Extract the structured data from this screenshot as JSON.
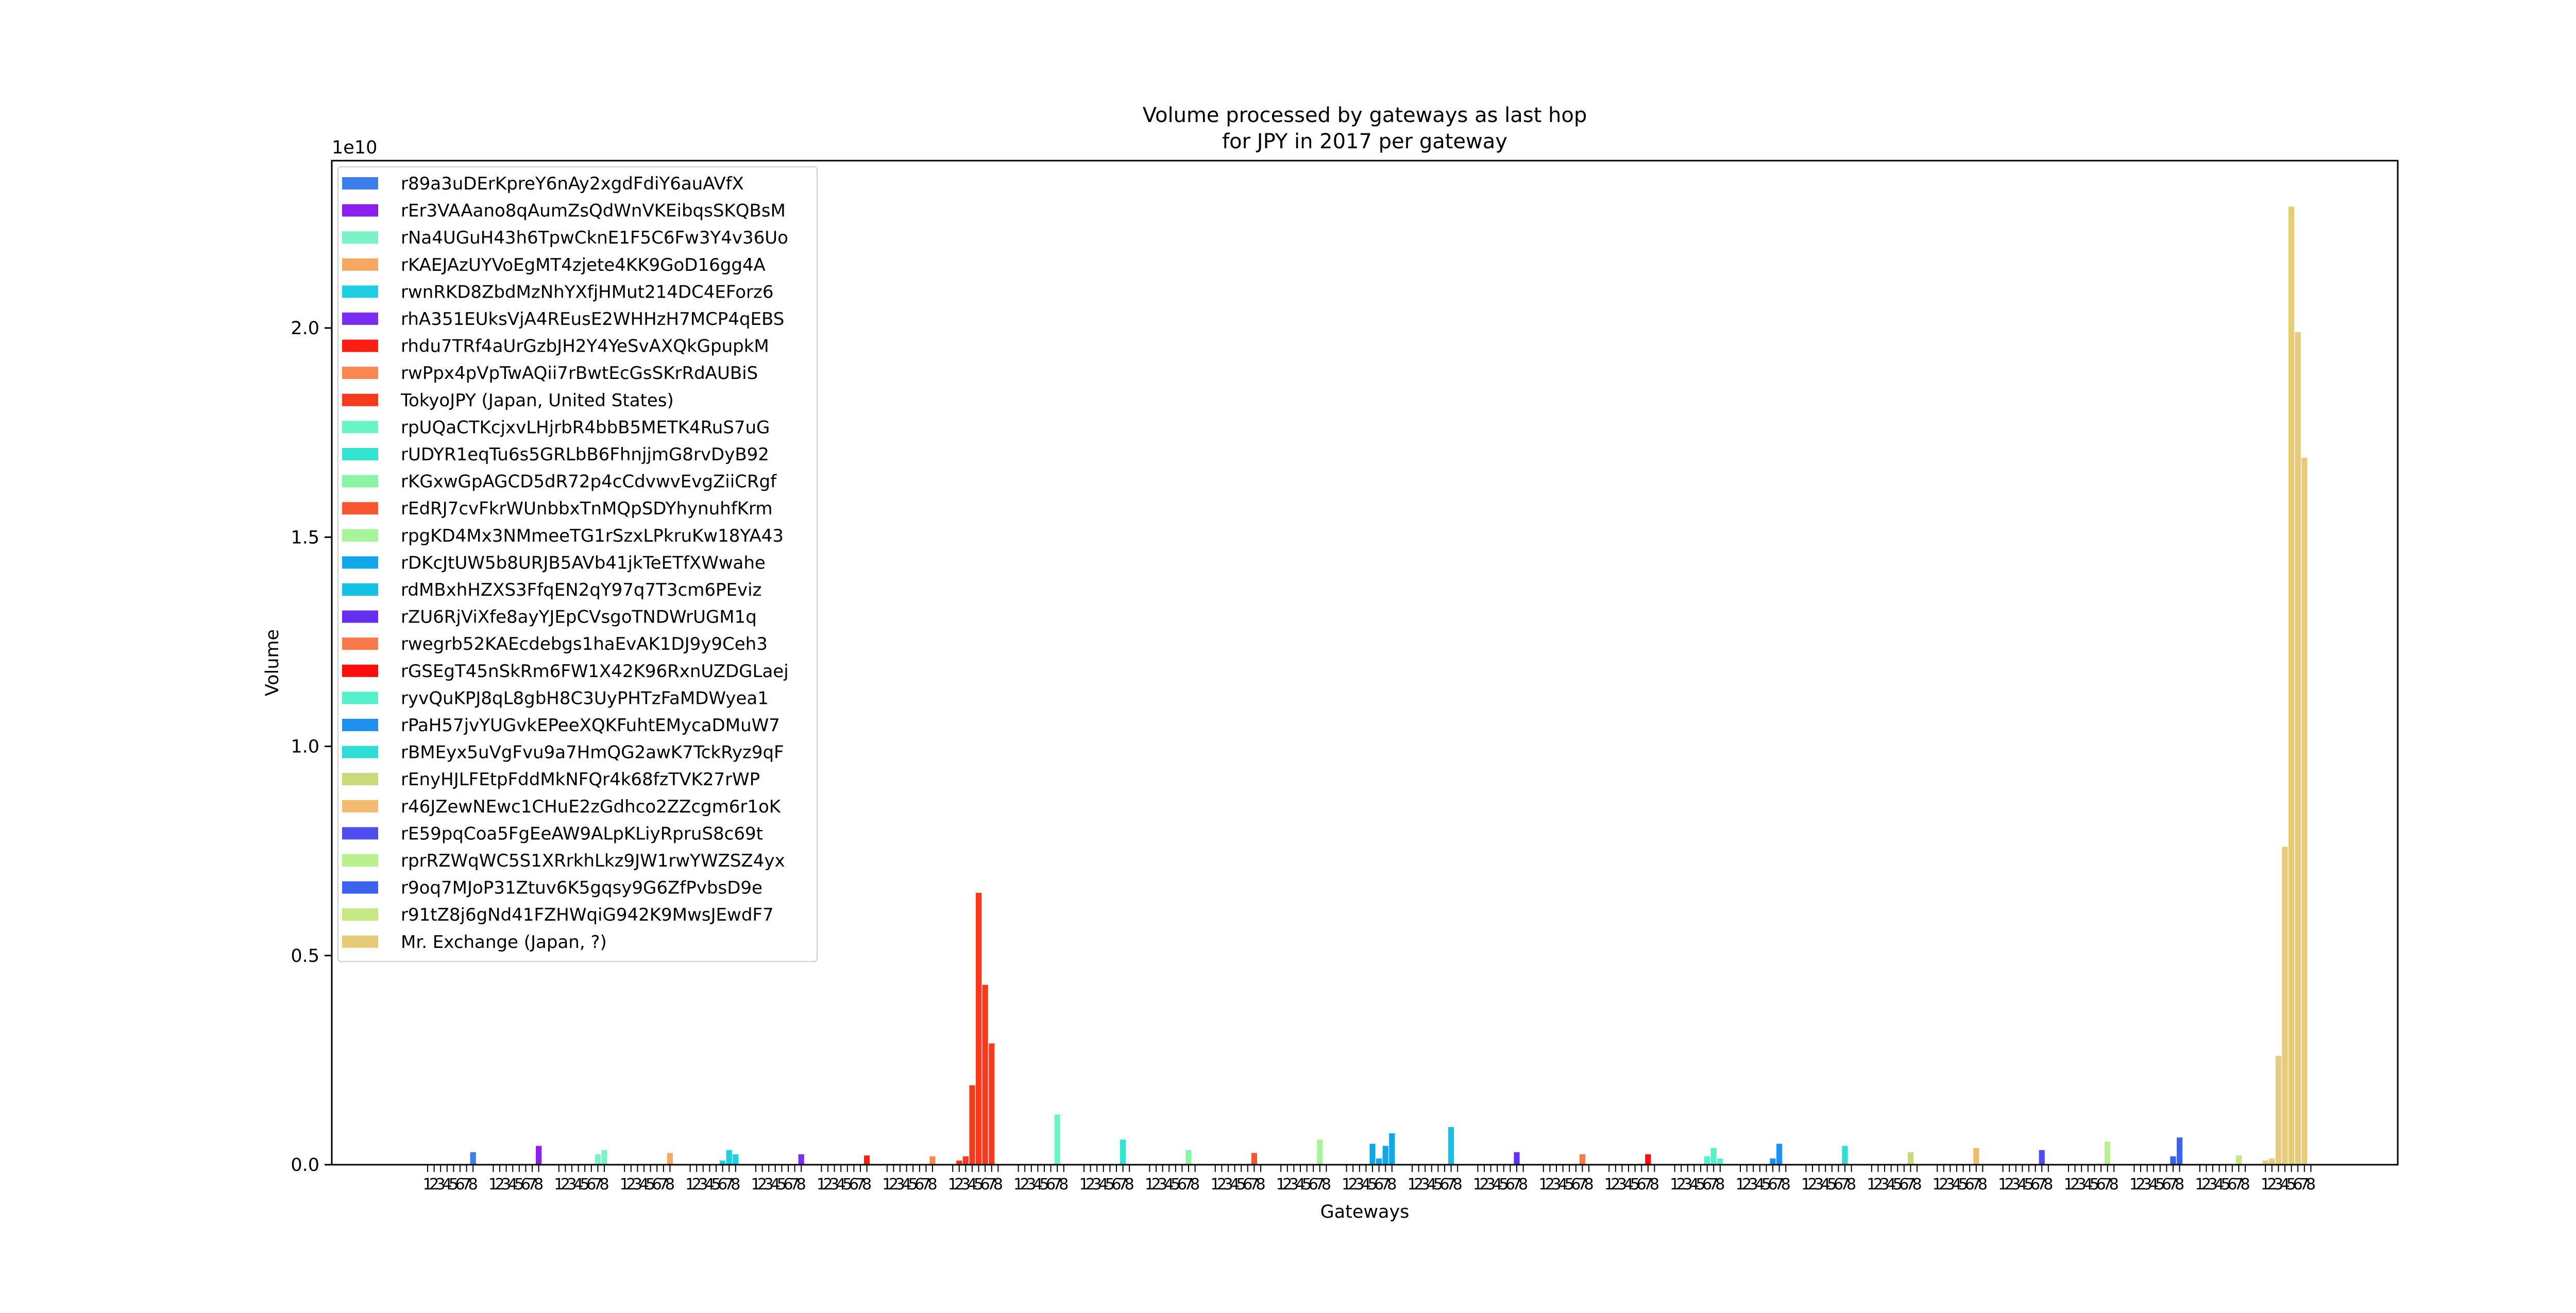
{
  "chart_data": {
    "type": "bar",
    "title": "Volume processed by gateways as last hop\nfor JPY in 2017 per gateway",
    "xlabel": "Gateways",
    "ylabel": "Volume",
    "y_offset_label": "1e10",
    "ylim": [
      0,
      2.4
    ],
    "yticks": [
      0.0,
      0.5,
      1.0,
      1.5,
      2.0
    ],
    "ytick_labels": [
      "0.0",
      "0.5",
      "1.0",
      "1.5",
      "2.0"
    ],
    "x_tick_labels": [
      "1",
      "2",
      "3",
      "4",
      "5",
      "6",
      "7",
      "8"
    ],
    "grid": false,
    "legend_position": "upper-left",
    "series": [
      {
        "name": "r89a3uDErKpreY6nAy2xgdFdiY6auAVfX",
        "color": "#3d7fea",
        "values": [
          0,
          0,
          0,
          0,
          0,
          0,
          0,
          0.03
        ]
      },
      {
        "name": "rEr3VAAano8qAumZsQdWnVKEibqsSKQBsM",
        "color": "#8a1fee",
        "values": [
          0,
          0,
          0,
          0,
          0,
          0,
          0,
          0.045
        ]
      },
      {
        "name": "rNa4UGuH43h6TpwCknE1F5C6Fw3Y4v36Uo",
        "color": "#7cf3c6",
        "values": [
          0,
          0,
          0,
          0,
          0,
          0,
          0.025,
          0.035
        ]
      },
      {
        "name": "rKAEJAzUYVoEgMT4zjete4KK9GoD16gg4A",
        "color": "#f7a862",
        "values": [
          0,
          0,
          0,
          0,
          0,
          0,
          0,
          0.028
        ]
      },
      {
        "name": "rwnRKD8ZbdMzNhYXfjHMut214DC4EForz6",
        "color": "#1fcfe1",
        "values": [
          0,
          0,
          0,
          0,
          0,
          0.01,
          0.035,
          0.025
        ]
      },
      {
        "name": "rhA351EUksVjA4REusE2WHHzH7MCP4qEBS",
        "color": "#7b2ef2",
        "values": [
          0,
          0,
          0,
          0,
          0,
          0,
          0,
          0.025
        ]
      },
      {
        "name": "rhdu7TRf4aUrGzbJH2Y4YeSvAXQkGpupkM",
        "color": "#fa1f11",
        "values": [
          0,
          0,
          0,
          0,
          0,
          0,
          0,
          0.022
        ]
      },
      {
        "name": "rwPpx4pVpTwAQii7rBwtEcGsSKrRdAUBiS",
        "color": "#f8884f",
        "values": [
          0,
          0,
          0,
          0,
          0,
          0,
          0,
          0.02
        ]
      },
      {
        "name": "TokyoJPY (Japan, United States)",
        "color": "#f8391d",
        "values": [
          0,
          0.01,
          0.02,
          0.19,
          0.65,
          0.43,
          0.29,
          0
        ]
      },
      {
        "name": "rpUQaCTKcjxvLHjrbR4bbB5METK4RuS7uG",
        "color": "#69f5c8",
        "values": [
          0,
          0,
          0,
          0,
          0,
          0,
          0.12,
          0
        ]
      },
      {
        "name": "rUDYR1eqTu6s5GRLbB6FhnjjmG8rvDyB92",
        "color": "#34e3d0",
        "values": [
          0,
          0,
          0,
          0,
          0,
          0,
          0.06,
          0
        ]
      },
      {
        "name": "rKGxwGpAGCD5dR72p4cCdvwvEvgZiiCRgf",
        "color": "#8bf5a5",
        "values": [
          0,
          0,
          0,
          0,
          0,
          0,
          0.035,
          0
        ]
      },
      {
        "name": "rEdRJ7cvFkrWUnbbxTnMQpSDYhynuhfKrm",
        "color": "#f95530",
        "values": [
          0,
          0,
          0,
          0,
          0,
          0,
          0.028,
          0
        ]
      },
      {
        "name": "rpgKD4Mx3NMmeeTG1rSzxLPkruKw18YA43",
        "color": "#a6f59a",
        "values": [
          0,
          0,
          0,
          0,
          0,
          0,
          0.06,
          0
        ]
      },
      {
        "name": "rDKcJtUW5b8URJB5AVb41jkTeETfXWwahe",
        "color": "#12a7e8",
        "values": [
          0,
          0,
          0,
          0,
          0.05,
          0.015,
          0.045,
          0.075
        ]
      },
      {
        "name": "rdMBxhHZXS3FfqEN2qY97q7T3cm6PEviz",
        "color": "#14c0e4",
        "values": [
          0,
          0,
          0,
          0,
          0,
          0,
          0.09,
          0
        ]
      },
      {
        "name": "rZU6RjViXfe8ayYJEpCVsgoTNDWrUGM1q",
        "color": "#6330f1",
        "values": [
          0,
          0,
          0,
          0,
          0,
          0,
          0.03,
          0
        ]
      },
      {
        "name": "rwegrb52KAEcdebgs1haEvAK1DJ9y9Ceh3",
        "color": "#f97a4a",
        "values": [
          0,
          0,
          0,
          0,
          0,
          0,
          0.025,
          0
        ]
      },
      {
        "name": "rGSEgT45nSkRm6FW1X42K96RxnUZDGLaej",
        "color": "#fb0d0d",
        "values": [
          0,
          0,
          0,
          0,
          0,
          0,
          0.025,
          0
        ]
      },
      {
        "name": "ryvQuKPJ8qL8gbH8C3UyPHTzFaMDWyea1",
        "color": "#56f0cc",
        "values": [
          0,
          0,
          0,
          0,
          0,
          0.02,
          0.04,
          0.015
        ]
      },
      {
        "name": "rPaH57jvYUGvkEPeeXQKFuhtEMycaDMuW7",
        "color": "#1f8ff0",
        "values": [
          0,
          0,
          0,
          0,
          0,
          0.015,
          0.05,
          0
        ]
      },
      {
        "name": "rBMEyx5uVgFvu9a7HmQG2awK7TckRyz9qF",
        "color": "#2fdcd8",
        "values": [
          0,
          0,
          0,
          0,
          0,
          0,
          0.045,
          0
        ]
      },
      {
        "name": "rEnyHJLFEtpFddMkNFQr4k68fzTVK27rWP",
        "color": "#ccd87c",
        "values": [
          0,
          0,
          0,
          0,
          0,
          0,
          0.03,
          0
        ]
      },
      {
        "name": "r46JZewNEwc1CHuE2zGdhco2ZZcgm6r1oK",
        "color": "#f2bc70",
        "values": [
          0,
          0,
          0,
          0,
          0,
          0,
          0.04,
          0
        ]
      },
      {
        "name": "rE59pqCoa5FgEeAW9ALpKLiyRpruS8c69t",
        "color": "#4f4df0",
        "values": [
          0,
          0,
          0,
          0,
          0,
          0,
          0.035,
          0
        ]
      },
      {
        "name": "rprRZWqWC5S1XRrkhLkz9JW1rwYWZSZ4yx",
        "color": "#b8f18e",
        "values": [
          0,
          0,
          0,
          0,
          0,
          0,
          0.055,
          0
        ]
      },
      {
        "name": "r9oq7MJoP31Ztuv6K5gqsy9G6ZfPvbsD9e",
        "color": "#3b63ef",
        "values": [
          0,
          0,
          0,
          0,
          0,
          0,
          0.02,
          0.065
        ]
      },
      {
        "name": "r91tZ8j6gNd41FZHWqiG942K9MwsJEwdF7",
        "color": "#c6e884",
        "values": [
          0,
          0,
          0,
          0,
          0,
          0,
          0.022,
          0
        ]
      },
      {
        "name": "Mr. Exchange (Japan, ?)",
        "color": "#e6cb78",
        "values": [
          0.01,
          0.015,
          0.26,
          0.76,
          2.29,
          1.99,
          1.69,
          0
        ]
      }
    ]
  }
}
